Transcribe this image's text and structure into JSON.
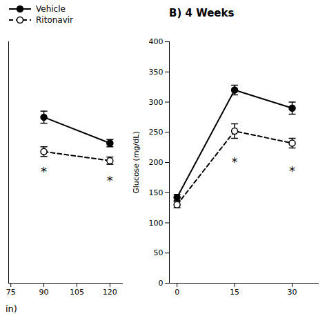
{
  "chart_data": [
    {
      "type": "line",
      "x": [
        90,
        120
      ],
      "series": [
        {
          "name": "Vehicle",
          "color": "black",
          "marker": "circle",
          "line_style": "solid",
          "values": [
            275,
            232
          ],
          "errors": [
            10,
            6
          ]
        },
        {
          "name": "Ritonavir",
          "color": "black",
          "marker": "open_circle",
          "line_style": "dashed",
          "values": [
            218,
            203
          ],
          "errors": [
            8,
            6
          ]
        }
      ],
      "annotations": [
        {
          "text": "*",
          "x": 90,
          "y": 192
        },
        {
          "text": "*",
          "x": 120,
          "y": 178
        },
        {
          "text": "in)"
        }
      ],
      "xlim": [
        74,
        126
      ],
      "xticks": [
        75,
        90,
        105,
        120
      ],
      "ylim": [
        0,
        400
      ],
      "tick_labels": "x",
      "legend": "upper left",
      "grid": false
    },
    {
      "type": "line",
      "title": "B)  4 Weeks",
      "y_label": "Glucose (mg/dL)",
      "x": [
        0,
        15,
        30
      ],
      "series": [
        {
          "color": "black",
          "marker": "circle",
          "line_style": "solid",
          "values": [
            142,
            320,
            290
          ],
          "errors": [
            5,
            8,
            10
          ]
        },
        {
          "color": "black",
          "marker": "open_circle",
          "line_style": "dashed",
          "values": [
            130,
            252,
            232
          ],
          "errors": [
            5,
            12,
            8
          ]
        }
      ],
      "annotations": [
        {
          "text": "*",
          "x": 15,
          "y": 208
        },
        {
          "text": "*",
          "x": 30,
          "y": 193
        }
      ],
      "xlim": [
        -2,
        37
      ],
      "xticks": [
        0,
        15,
        30
      ],
      "ylim": [
        0,
        400
      ],
      "yticks": [
        0,
        50,
        100,
        150,
        200,
        250,
        300,
        350,
        400
      ],
      "grid": false
    }
  ]
}
